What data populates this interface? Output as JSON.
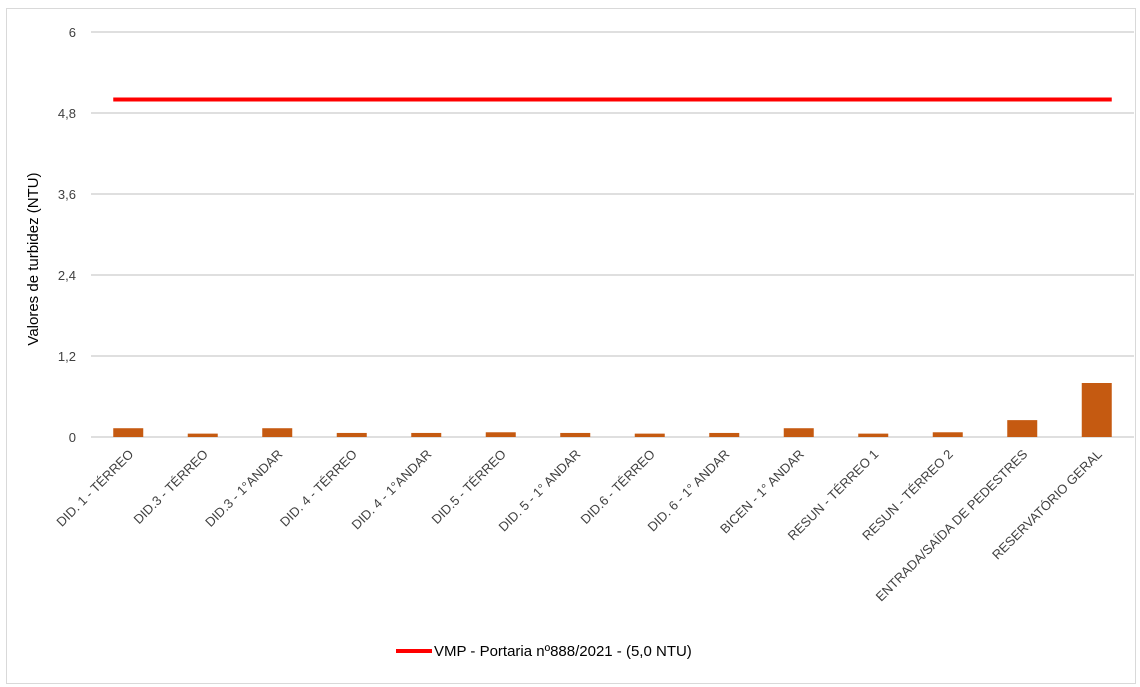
{
  "chart_data": {
    "type": "bar",
    "ylabel": "Valores de turbidez (NTU)",
    "xlabel": "",
    "ylim": [
      0,
      6
    ],
    "yticks": [
      "0",
      "1,2",
      "2,4",
      "3,6",
      "4,8",
      "6"
    ],
    "ytick_values": [
      0,
      1.2,
      2.4,
      3.6,
      4.8,
      6
    ],
    "grid": true,
    "categories": [
      "DID. 1 - TÉRREO",
      "DID.3 - TÉRREO",
      "DID.3 - 1°ANDAR",
      "DID. 4 - TÉRREO",
      "DID. 4 - 1°ANDAR",
      "DID.5 - TÉRREO",
      "DID. 5 - 1° ANDAR",
      "DID.6 - TÉRREO",
      "DID. 6 - 1° ANDAR",
      "BICEN - 1° ANDAR",
      "RESUN - TÉRREO 1",
      "RESUN - TÉRREO 2",
      "ENTRADA/SAÍDA DE PEDESTRES",
      "RESERVATÓRIO GERAL"
    ],
    "series": [
      {
        "type": "bar",
        "values": [
          0.13,
          0.05,
          0.13,
          0.06,
          0.06,
          0.07,
          0.06,
          0.05,
          0.06,
          0.13,
          0.05,
          0.07,
          0.25,
          0.8
        ],
        "color": "#c55a11"
      },
      {
        "type": "line",
        "name": "VMP - Portaria nº888/2021 - (5,0 NTU)",
        "value": 5.0,
        "color": "#ff0000"
      }
    ],
    "legend_position": "bottom"
  }
}
